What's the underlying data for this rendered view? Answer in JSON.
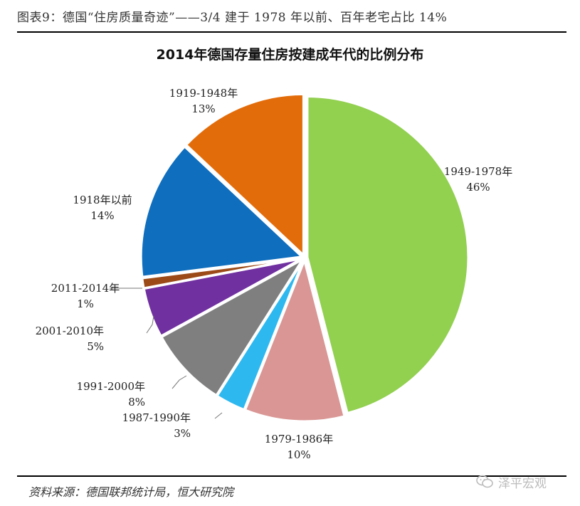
{
  "header": {
    "figure_title": "图表9：德国“住房质量奇迹”——3/4 建于 1978 年以前、百年老宅占比 14%"
  },
  "footer": {
    "source": "资料来源：德国联邦统计局，恒大研究院",
    "watermark": "泽平宏观"
  },
  "chart_data": {
    "type": "pie",
    "title": "2014年德国存量住房按建成年代的比例分布",
    "slices": [
      {
        "label": "1949-1978年",
        "percent_label": "46%",
        "value": 46,
        "color": "#92d050"
      },
      {
        "label": "1979-1986年",
        "percent_label": "10%",
        "value": 10,
        "color": "#d99694"
      },
      {
        "label": "1987-1990年",
        "percent_label": "3%",
        "value": 3,
        "color": "#2eb8f0"
      },
      {
        "label": "1991-2000年",
        "percent_label": "8%",
        "value": 8,
        "color": "#7f7f7f"
      },
      {
        "label": "2001-2010年",
        "percent_label": "5%",
        "value": 5,
        "color": "#7030a0"
      },
      {
        "label": "2011-2014年",
        "percent_label": "1%",
        "value": 1,
        "color": "#9c4a17"
      },
      {
        "label": "1918年以前",
        "percent_label": "14%",
        "value": 14,
        "color": "#0f6ebd"
      },
      {
        "label": "1919-1948年",
        "percent_label": "13%",
        "value": 13,
        "color": "#e36c0a"
      }
    ]
  }
}
